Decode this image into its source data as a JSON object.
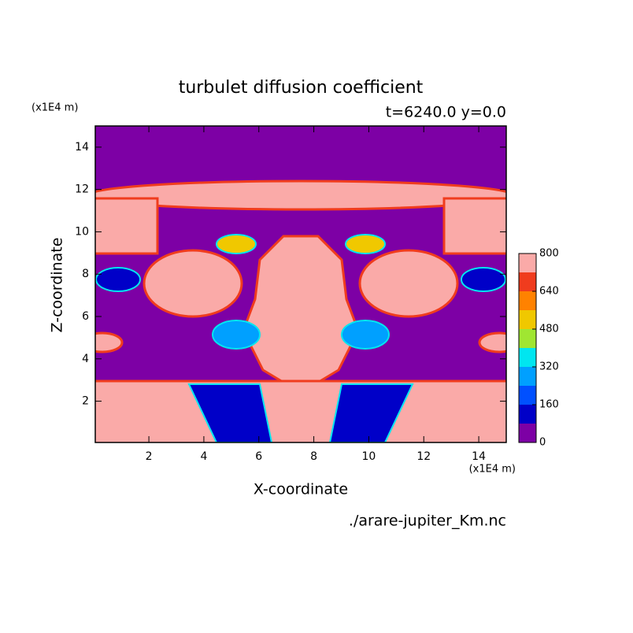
{
  "chart_data": {
    "type": "contour",
    "title": "turbulet diffusion coefficient",
    "subtitle": "t=6240.0 y=0.0",
    "xlabel": "X-coordinate",
    "ylabel": "Z-coordinate",
    "xunit": "(x1E4 m)",
    "yunit": "(x1E4 m)",
    "source": "./arare-jupiter_Km.nc",
    "xlim": [
      0.05,
      15
    ],
    "ylim": [
      0.05,
      15
    ],
    "xticks": [
      2,
      4,
      6,
      8,
      10,
      12,
      14
    ],
    "yticks": [
      2,
      4,
      6,
      8,
      10,
      12,
      14
    ],
    "colorbar": {
      "levels": [
        0,
        80,
        160,
        240,
        320,
        400,
        480,
        560,
        640,
        720,
        800
      ],
      "colors": [
        "#7d00a5",
        "#0000c8",
        "#0050ff",
        "#00a0ff",
        "#00e6f0",
        "#a0e632",
        "#f0c800",
        "#ff8200",
        "#f03c1e",
        "#faaaa8"
      ],
      "ticks": [
        0,
        160,
        320,
        480,
        640,
        800
      ]
    }
  }
}
